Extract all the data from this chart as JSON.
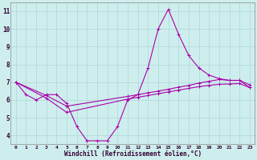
{
  "xlabel": "Windchill (Refroidissement éolien,°C)",
  "background_color": "#ceeeed",
  "grid_color": "#aad8d8",
  "line_color": "#aa00aa",
  "x": [
    0,
    1,
    2,
    3,
    4,
    5,
    6,
    7,
    8,
    9,
    10,
    11,
    12,
    13,
    14,
    15,
    16,
    17,
    18,
    19,
    20,
    21,
    22,
    23
  ],
  "line1": [
    7.0,
    6.3,
    6.0,
    6.3,
    6.3,
    5.8,
    4.5,
    3.7,
    3.7,
    3.7,
    4.5,
    6.0,
    6.3,
    7.8,
    10.0,
    11.1,
    9.7,
    8.5,
    7.8,
    7.4,
    7.2,
    7.1,
    7.1,
    6.7
  ],
  "line2": [
    7.0,
    null,
    null,
    6.1,
    null,
    5.3,
    null,
    null,
    null,
    null,
    null,
    6.05,
    6.15,
    6.25,
    6.35,
    6.45,
    6.55,
    6.65,
    6.75,
    6.82,
    6.88,
    6.9,
    6.92,
    6.7
  ],
  "line3": [
    7.0,
    null,
    null,
    6.25,
    null,
    5.65,
    null,
    null,
    null,
    null,
    null,
    6.2,
    6.3,
    6.4,
    6.5,
    6.6,
    6.72,
    6.82,
    6.95,
    7.05,
    7.15,
    7.1,
    7.1,
    6.85
  ],
  "ylim": [
    3.5,
    11.5
  ],
  "yticks": [
    4,
    5,
    6,
    7,
    8,
    9,
    10,
    11
  ],
  "xlim": [
    -0.5,
    23.5
  ]
}
